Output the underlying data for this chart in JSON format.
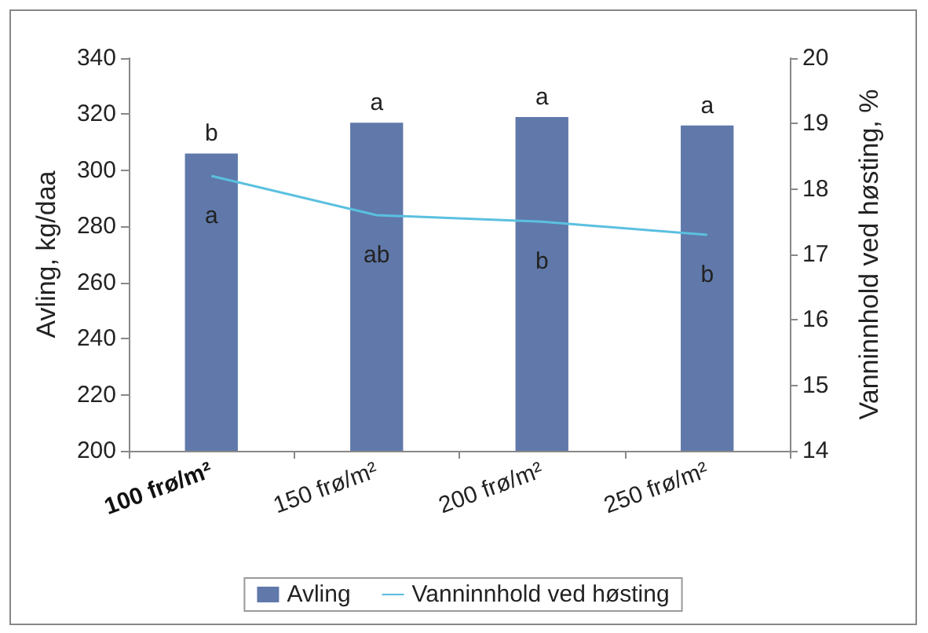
{
  "chart_data": {
    "type": "bar",
    "categories": [
      "100 frø/m²",
      "150 frø/m²",
      "200 frø/m²",
      "250 frø/m²"
    ],
    "ylabel": "Avling, kg/daa",
    "y2label": "Vanninnhold ved høsting, %",
    "ylim": [
      200,
      340
    ],
    "yticks": [
      200,
      220,
      240,
      260,
      280,
      300,
      320,
      340
    ],
    "y2lim": [
      14,
      20
    ],
    "y2ticks": [
      14,
      15,
      16,
      17,
      18,
      19,
      20
    ],
    "series": [
      {
        "name": "Avling",
        "color": "#6079aa",
        "values": [
          306,
          317,
          319,
          316
        ],
        "value_labels": [
          "b",
          "a",
          "a",
          "a"
        ]
      },
      {
        "name": "Vanninnhold ved høsting",
        "type": "line",
        "axis": "y2",
        "color": "#5bc0e0",
        "values": [
          18.2,
          17.6,
          17.5,
          17.3
        ],
        "value_labels": [
          "a",
          "ab",
          "b",
          "b"
        ]
      }
    ],
    "grid": false,
    "legend": "bottom",
    "marker": "none"
  }
}
